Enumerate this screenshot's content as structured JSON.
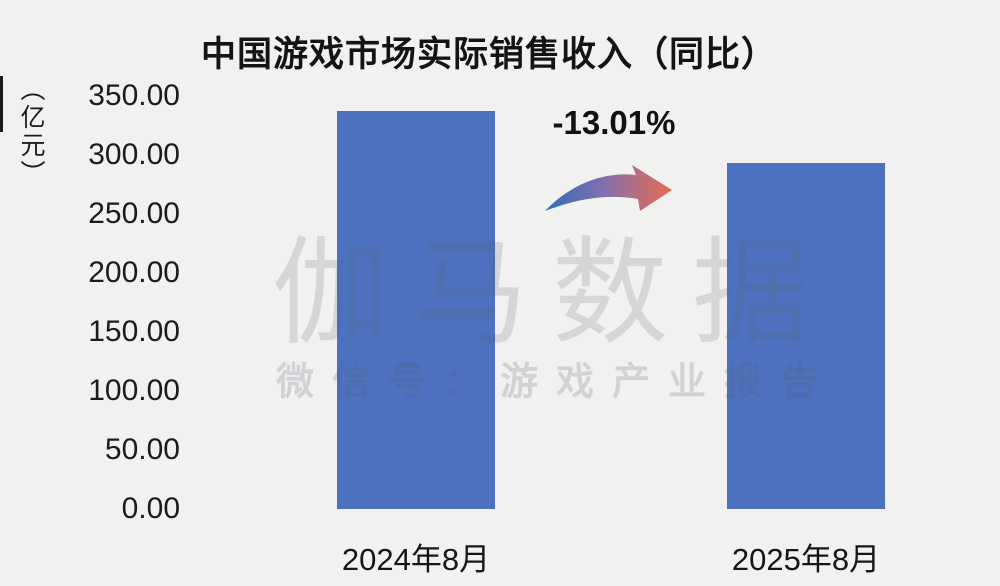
{
  "page": {
    "background": "#f1f1ef"
  },
  "chart_data": {
    "type": "bar",
    "title": "中国游戏市场实际销售收入（同比）",
    "ylabel_unit": "（亿元）",
    "categories": [
      "2024年8月",
      "2025年8月"
    ],
    "values": [
      337.37,
      293.47
    ],
    "ylim": [
      0,
      350
    ],
    "ytick_step": 50,
    "ytick_labels": [
      "350.00",
      "300.00",
      "250.00",
      "200.00",
      "150.00",
      "100.00",
      "50.00",
      "0.00"
    ],
    "grid": false,
    "legend": false,
    "bar_color": "#4c72bf",
    "text_color": "#161616",
    "annotation": {
      "text": "-13.01%",
      "meaning": "year-over-year decline from 2024年8月 to 2025年8月",
      "arrow_colors": [
        "#2f6db8",
        "#8570ad",
        "#ea6a4d"
      ]
    }
  },
  "watermark": {
    "brand": "伽马数据",
    "wechat_line": "微信号：游戏产业报告"
  }
}
